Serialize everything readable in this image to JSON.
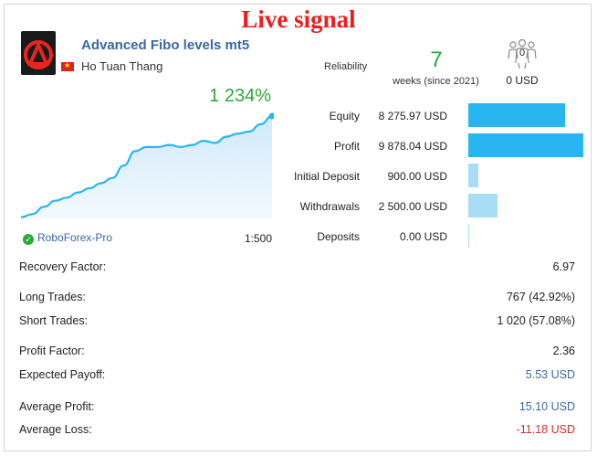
{
  "headline": "Live signal",
  "signal": {
    "name": "Advanced Fibo levels mt5",
    "author": "Ho Tuan Thang",
    "logo_icon": "signal-logo-icon",
    "flag_icon": "vietnam-flag-icon"
  },
  "reliability": {
    "label": "Reliability",
    "weeks": "7",
    "weeks_text": "weeks (since 2021)"
  },
  "subscribers": {
    "count": "0",
    "price": "0 USD",
    "icon": "subscribers-icon"
  },
  "growth": {
    "value": "1 234%",
    "curve": [
      0.02,
      0.05,
      0.12,
      0.18,
      0.21,
      0.26,
      0.3,
      0.35,
      0.4,
      0.52,
      0.66,
      0.7,
      0.7,
      0.72,
      0.7,
      0.72,
      0.76,
      0.74,
      0.8,
      0.83,
      0.85,
      0.92,
      1.0
    ]
  },
  "broker": {
    "name": "RoboForex-Pro",
    "leverage": "1:500"
  },
  "metrics": [
    {
      "label": "Equity",
      "value": "8 275.97 USD",
      "ratio": 0.838
    },
    {
      "label": "Profit",
      "value": "9 878.04 USD",
      "ratio": 1.0
    },
    {
      "label": "Initial Deposit",
      "value": "900.00 USD",
      "ratio": 0.091
    },
    {
      "label": "Withdrawals",
      "value": "2 500.00 USD",
      "ratio": 0.253
    },
    {
      "label": "Deposits",
      "value": "0.00 USD",
      "ratio": 0.0
    }
  ],
  "stats": [
    {
      "label": "Recovery Factor:",
      "value": "6.97"
    },
    {
      "label": "Long Trades:",
      "value": "767 (42.92%)"
    },
    {
      "label": "Short Trades:",
      "value": "1 020 (57.08%)"
    },
    {
      "label": "Profit Factor:",
      "value": "2.36"
    },
    {
      "label": "Expected Payoff:",
      "value": "5.53 USD"
    },
    {
      "label": "Average Profit:",
      "value": "15.10 USD"
    },
    {
      "label": "Average Loss:",
      "value": "-11.18 USD"
    }
  ],
  "colors": {
    "growth": "#2aaa3a",
    "headline": "#ee1c1c",
    "bar_dark": "#29b6f0",
    "bar_light": "#a9dcf7",
    "link_blue": "#3a67a5",
    "loss_red": "#d82c2c"
  }
}
